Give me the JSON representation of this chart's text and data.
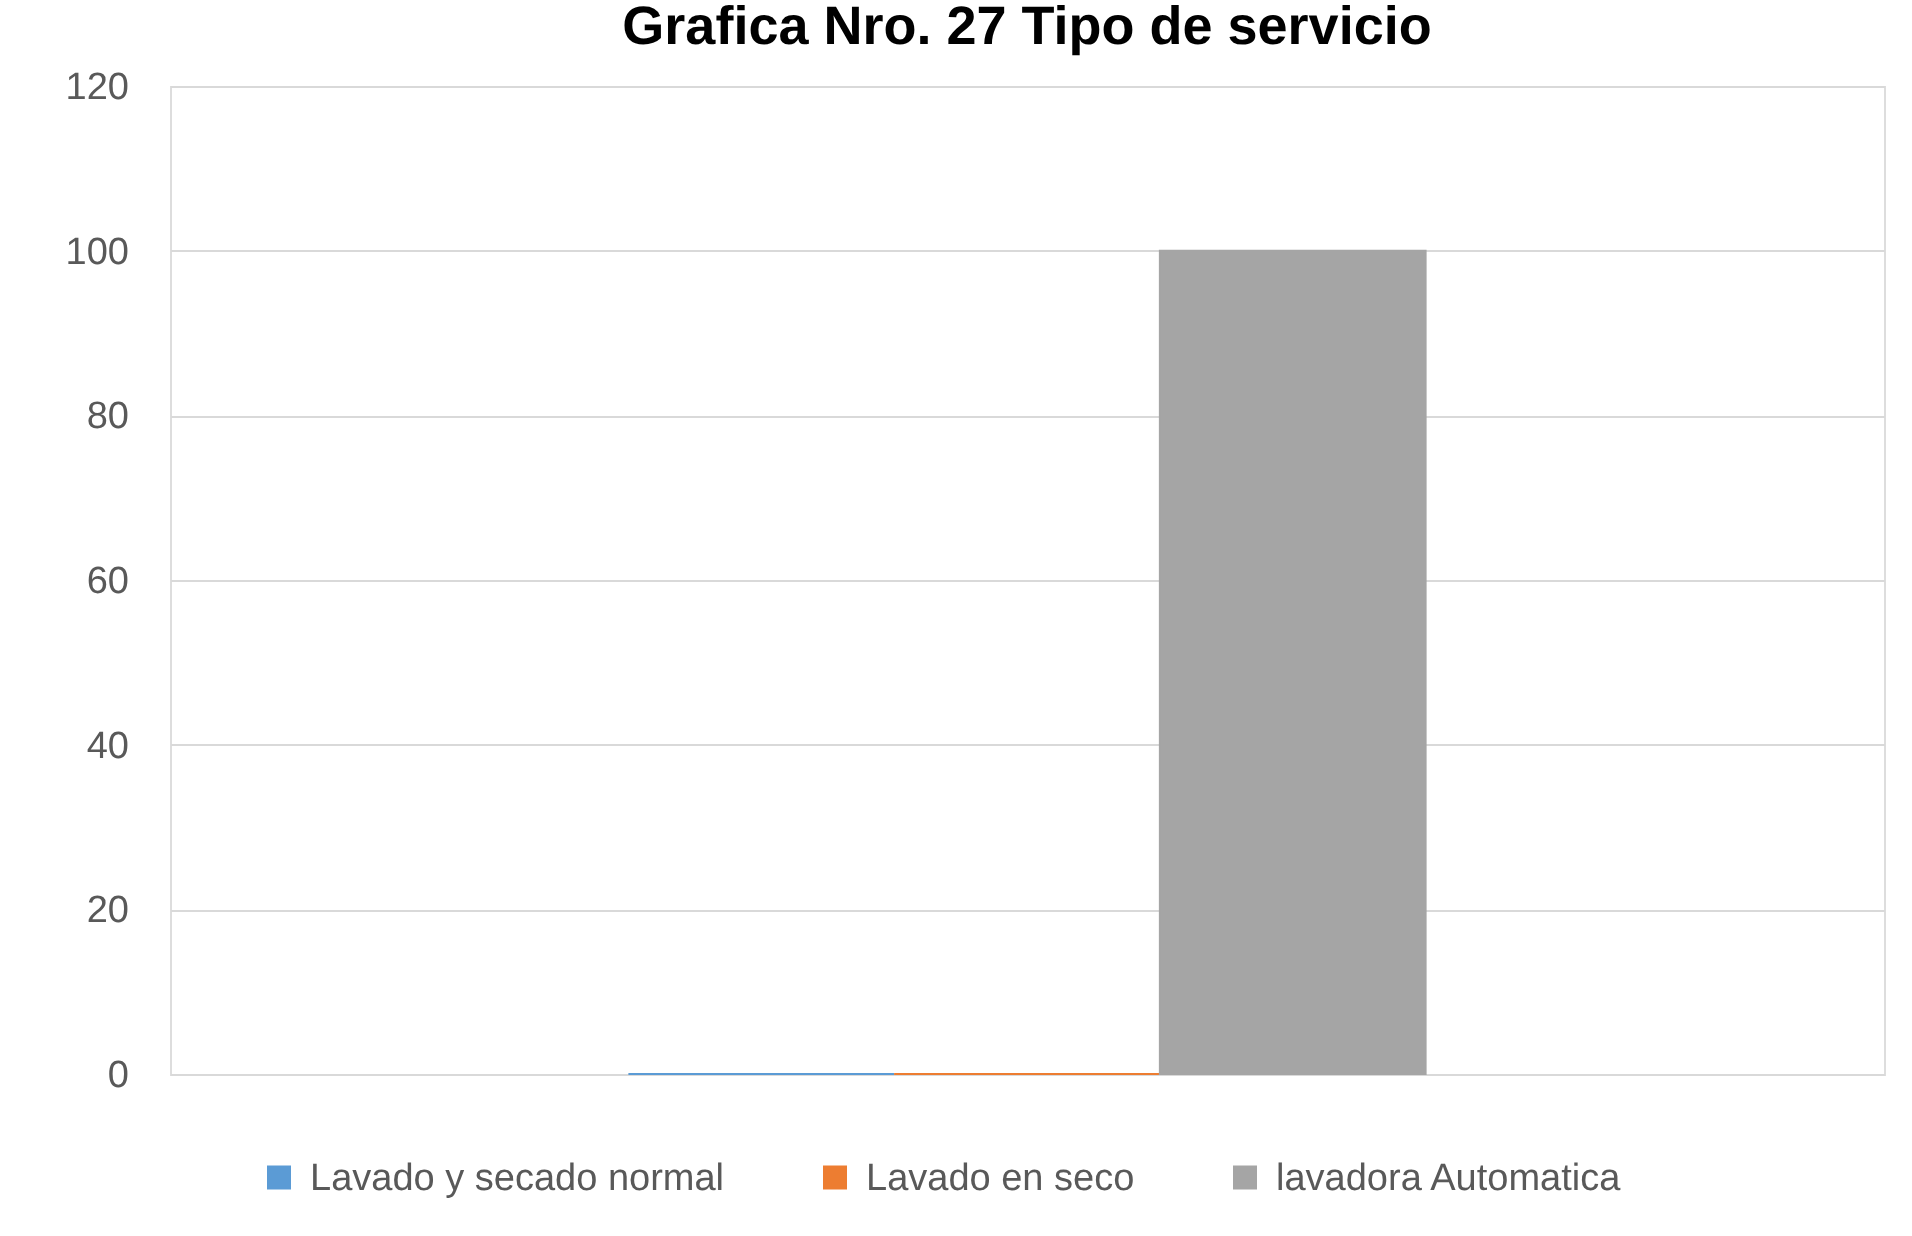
{
  "chart_data": {
    "type": "bar",
    "title": "Grafica Nro. 27 Tipo de servicio",
    "categories": [
      null
    ],
    "series": [
      {
        "name": "Lavado y secado normal",
        "color": "#5b9bd5",
        "values": [
          0
        ]
      },
      {
        "name": "Lavado en seco",
        "color": "#ed7d31",
        "values": [
          0
        ]
      },
      {
        "name": "lavadora Automatica",
        "color": "#a5a5a5",
        "values": [
          100
        ]
      }
    ],
    "ylim": [
      0,
      120
    ],
    "yticks": [
      0,
      20,
      40,
      60,
      80,
      100,
      120
    ],
    "grid": "y",
    "legend": "bottom",
    "tick_labels": "y"
  }
}
